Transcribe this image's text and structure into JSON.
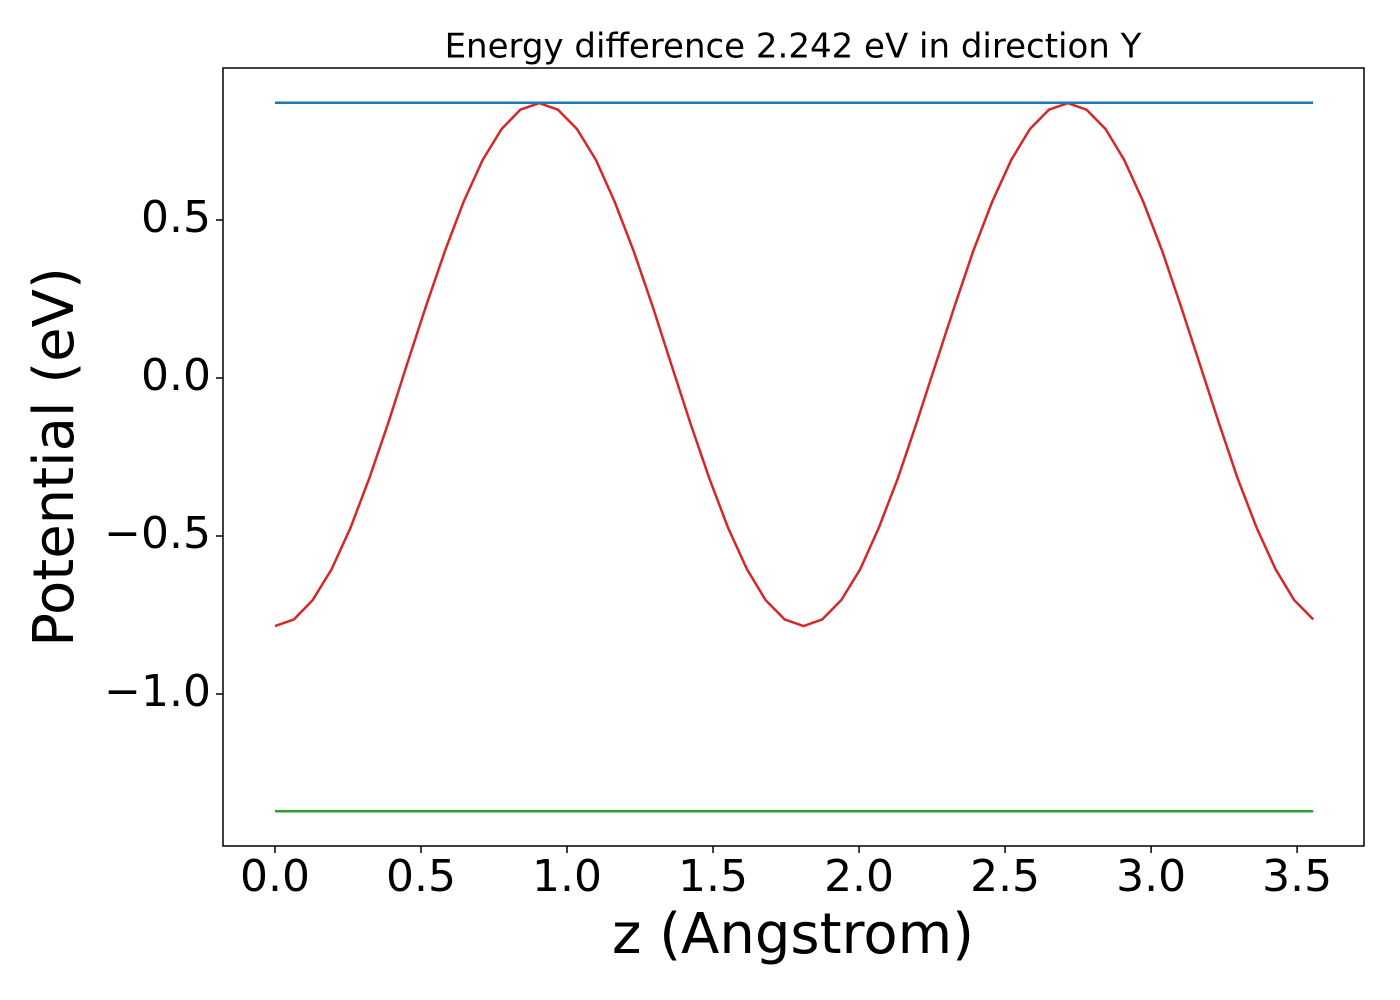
{
  "chart_data": {
    "type": "line",
    "title": "Energy difference 2.242 eV in direction Y",
    "xlabel": "z (Angstrom)",
    "ylabel": "Potential (eV)",
    "xlim": [
      -0.178,
      3.729
    ],
    "ylim": [
      -1.481,
      0.981
    ],
    "xticks": [
      {
        "value": 0,
        "label": "0.0"
      },
      {
        "value": 0.5,
        "label": "0.5"
      },
      {
        "value": 1,
        "label": "1.0"
      },
      {
        "value": 1.5,
        "label": "1.5"
      },
      {
        "value": 2,
        "label": "2.0"
      },
      {
        "value": 2.5,
        "label": "2.5"
      },
      {
        "value": 3,
        "label": "3.0"
      },
      {
        "value": 3.5,
        "label": "3.5"
      }
    ],
    "yticks": [
      {
        "value": -1,
        "label": "−1.0"
      },
      {
        "value": -0.5,
        "label": "−0.5"
      },
      {
        "value": 0,
        "label": "0.0"
      },
      {
        "value": 0.5,
        "label": "0.5"
      }
    ],
    "grid": false,
    "series": [
      {
        "color": "#d62728",
        "x": [
          0,
          0.065,
          0.129,
          0.194,
          0.259,
          0.323,
          0.388,
          0.452,
          0.517,
          0.582,
          0.646,
          0.711,
          0.776,
          0.84,
          0.905,
          0.969,
          1.034,
          1.099,
          1.163,
          1.228,
          1.293,
          1.357,
          1.422,
          1.487,
          1.551,
          1.616,
          1.68,
          1.745,
          1.81,
          1.874,
          1.939,
          2.004,
          2.068,
          2.133,
          2.197,
          2.262,
          2.327,
          2.391,
          2.456,
          2.521,
          2.585,
          2.65,
          2.715,
          2.779,
          2.844,
          2.908,
          2.973,
          3.038,
          3.102,
          3.167,
          3.232,
          3.296,
          3.361,
          3.426,
          3.49,
          3.555
        ],
        "values": [
          -0.785,
          -0.764,
          -0.703,
          -0.605,
          -0.473,
          -0.317,
          -0.142,
          0.043,
          0.227,
          0.402,
          0.558,
          0.69,
          0.788,
          0.849,
          0.87,
          0.849,
          0.788,
          0.69,
          0.558,
          0.402,
          0.227,
          0.043,
          -0.142,
          -0.317,
          -0.473,
          -0.605,
          -0.703,
          -0.764,
          -0.785,
          -0.764,
          -0.703,
          -0.605,
          -0.473,
          -0.317,
          -0.142,
          0.043,
          0.227,
          0.402,
          0.558,
          0.69,
          0.788,
          0.849,
          0.87,
          0.849,
          0.788,
          0.69,
          0.558,
          0.402,
          0.227,
          0.043,
          -0.142,
          -0.317,
          -0.473,
          -0.605,
          -0.703,
          -0.764
        ]
      },
      {
        "color": "#1f77b4",
        "x": [
          0,
          3.555
        ],
        "values": [
          0.871,
          0.871
        ]
      },
      {
        "color": "#2ca02c",
        "x": [
          0,
          3.555
        ],
        "values": [
          -1.371,
          -1.371
        ]
      }
    ]
  }
}
